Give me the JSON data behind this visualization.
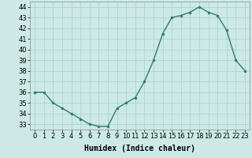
{
  "x": [
    0,
    1,
    2,
    3,
    4,
    5,
    6,
    7,
    8,
    9,
    10,
    11,
    12,
    13,
    14,
    15,
    16,
    17,
    18,
    19,
    20,
    21,
    22,
    23
  ],
  "y": [
    36,
    36,
    35,
    34.5,
    34,
    33.5,
    33,
    32.8,
    32.8,
    34.5,
    35,
    35.5,
    37,
    39,
    41.5,
    43,
    43.2,
    43.5,
    44,
    43.5,
    43.2,
    41.8,
    39,
    38
  ],
  "xlabel": "Humidex (Indice chaleur)",
  "ylim": [
    32.5,
    44.5
  ],
  "xlim": [
    -0.5,
    23.5
  ],
  "line_color": "#2e7d6e",
  "marker_color": "#2e7d6e",
  "bg_color": "#cce9e5",
  "grid_color": "#aad4cf",
  "yticks": [
    33,
    34,
    35,
    36,
    37,
    38,
    39,
    40,
    41,
    42,
    43,
    44
  ],
  "xticks": [
    0,
    1,
    2,
    3,
    4,
    5,
    6,
    7,
    8,
    9,
    10,
    11,
    12,
    13,
    14,
    15,
    16,
    17,
    18,
    19,
    20,
    21,
    22,
    23
  ],
  "tick_fontsize": 6,
  "xlabel_fontsize": 7
}
